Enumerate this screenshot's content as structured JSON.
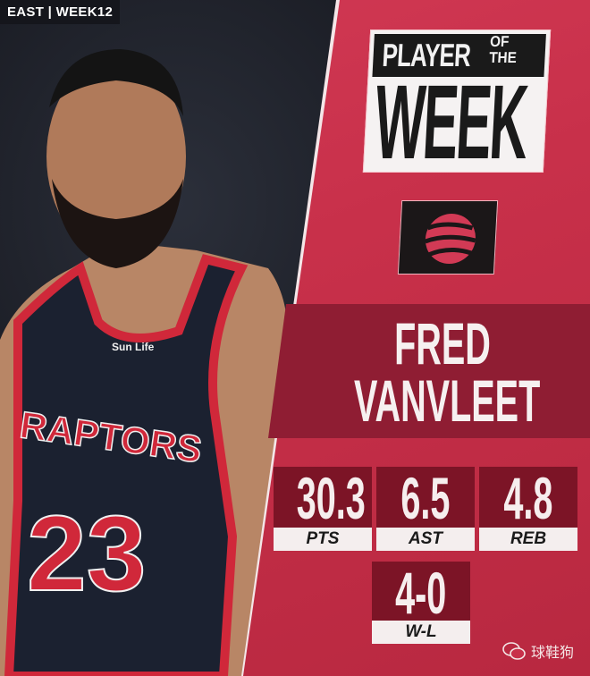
{
  "header": {
    "tag": "EAST | WEEK12"
  },
  "title": {
    "line1": "PLAYER",
    "of": "OF",
    "the": "THE",
    "line2": "WEEK"
  },
  "team_logo": {
    "icon": "raptors-claw-basketball-logo",
    "color": "#d23a55"
  },
  "player": {
    "first": "FRED",
    "last": "VANVLEET",
    "jersey_text": "RAPTORS",
    "jersey_number": "23",
    "sponsor": "Sun Life"
  },
  "stats": [
    {
      "value": "30.3",
      "label": "PTS"
    },
    {
      "value": "6.5",
      "label": "AST"
    },
    {
      "value": "4.8",
      "label": "REB"
    },
    {
      "value": "4-0",
      "label": "W-L"
    }
  ],
  "watermark": {
    "text": "球鞋狗",
    "icon": "wechat-icon"
  },
  "colors": {
    "accent": "#d23a55",
    "dark_red": "#7c1426",
    "jersey": "#1a1f2e"
  }
}
